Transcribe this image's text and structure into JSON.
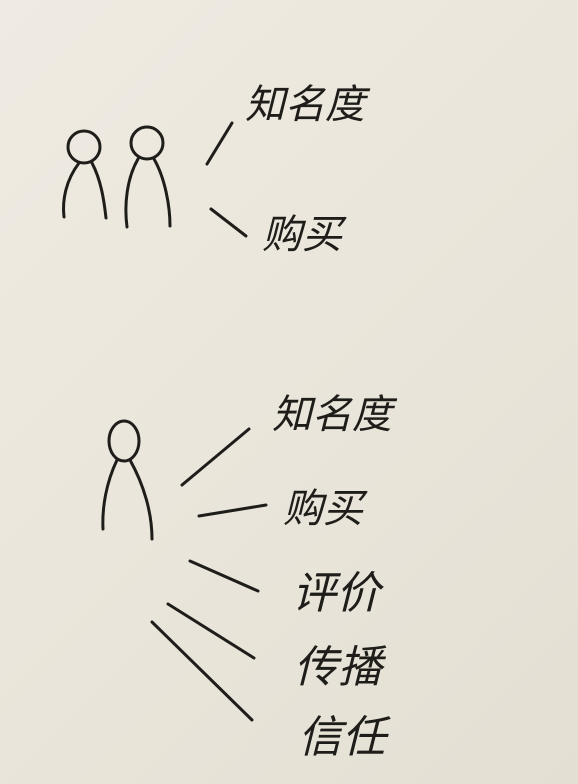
{
  "diagram": {
    "ink_color": "#1f1d1a",
    "paper_color": "#ece8de",
    "groups": [
      {
        "figures": [
          "person-icon",
          "person-icon"
        ],
        "labels": [
          "知名度",
          "购买"
        ]
      },
      {
        "figures": [
          "person-icon"
        ],
        "labels": [
          "知名度",
          "购买",
          "评价",
          "传播",
          "信任"
        ]
      }
    ]
  }
}
